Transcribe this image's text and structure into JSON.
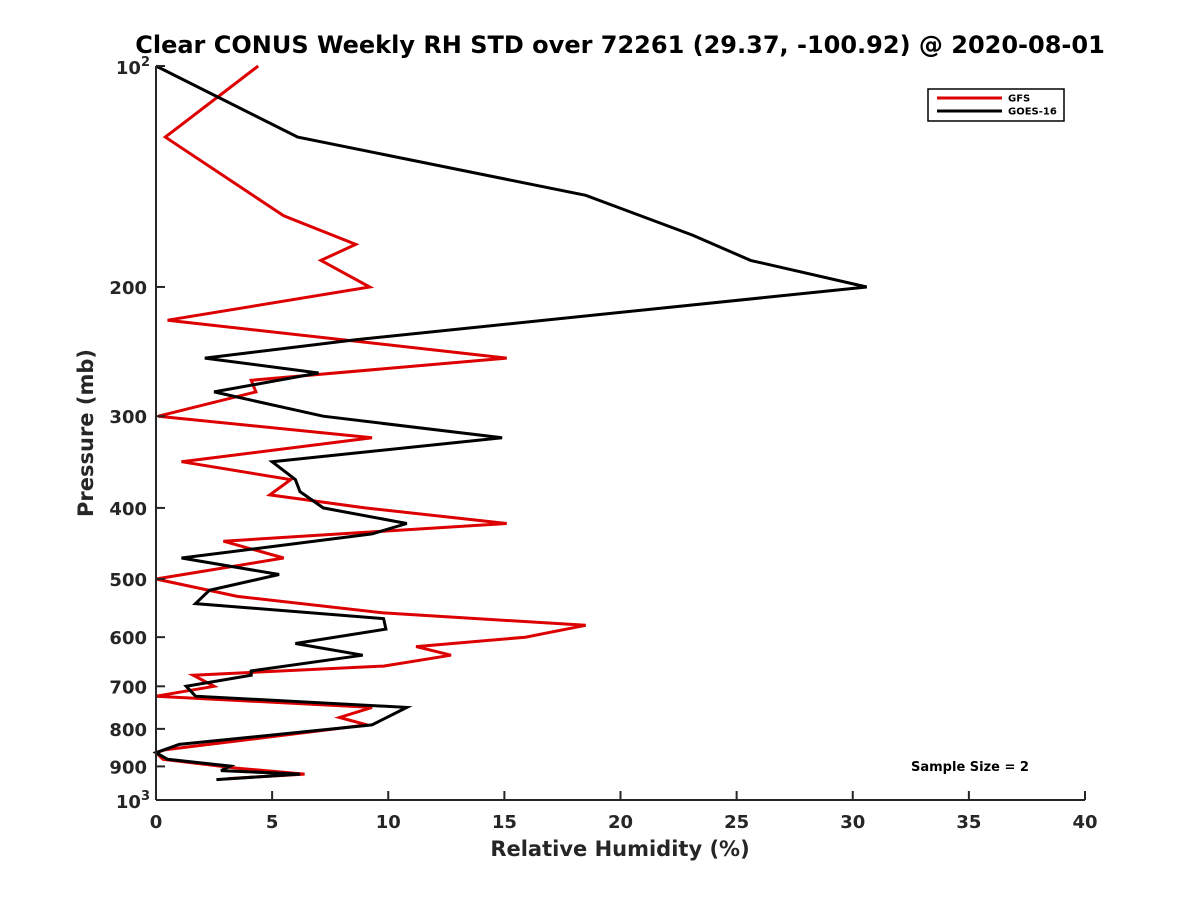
{
  "chart_data": {
    "type": "line",
    "title": "Clear CONUS Weekly RH STD over 72261 (29.37, -100.92) @ 2020-08-01",
    "xlabel": "Relative Humidity (%)",
    "ylabel": "Pressure (mb)",
    "xlim": [
      0,
      40
    ],
    "ylim": [
      100,
      1000
    ],
    "y_scale": "log",
    "y_reversed": true,
    "grid": false,
    "legend_position": "top-right",
    "x_ticks": [
      "0",
      "5",
      "10",
      "15",
      "20",
      "25",
      "30",
      "35",
      "40"
    ],
    "y_tick_values": [
      100,
      200,
      300,
      400,
      500,
      600,
      700,
      800,
      900,
      1000
    ],
    "y_ticks": [
      "10",
      "200",
      "300",
      "400",
      "500",
      "600",
      "700",
      "800",
      "900",
      "10"
    ],
    "y_tick_exponents": [
      "2",
      "",
      "",
      "",
      "",
      "",
      "",
      "",
      "",
      "3"
    ],
    "annotation": "Sample Size = 2",
    "series": [
      {
        "name": "GFS",
        "color": "#dd0000",
        "points": [
          [
            4.4,
            100
          ],
          [
            0.4,
            125
          ],
          [
            5.5,
            160
          ],
          [
            8.6,
            175
          ],
          [
            7.1,
            184
          ],
          [
            9.2,
            200
          ],
          [
            0.5,
            222
          ],
          [
            15.1,
            250
          ],
          [
            4.1,
            268
          ],
          [
            4.3,
            278
          ],
          [
            0.1,
            300
          ],
          [
            9.3,
            321
          ],
          [
            1.1,
            346
          ],
          [
            5.8,
            366
          ],
          [
            4.9,
            384
          ],
          [
            9.0,
            400
          ],
          [
            15.1,
            420
          ],
          [
            2.9,
            444
          ],
          [
            5.5,
            468
          ],
          [
            0.0,
            500
          ],
          [
            3.5,
            528
          ],
          [
            9.8,
            556
          ],
          [
            18.5,
            578
          ],
          [
            15.9,
            600
          ],
          [
            11.2,
            618
          ],
          [
            12.7,
            635
          ],
          [
            9.8,
            657
          ],
          [
            1.6,
            676
          ],
          [
            2.5,
            700
          ],
          [
            0.0,
            722
          ],
          [
            9.3,
            748
          ],
          [
            7.9,
            772
          ],
          [
            9.1,
            790
          ],
          [
            0.4,
            854
          ],
          [
            0.0,
            862
          ],
          [
            0.3,
            880
          ],
          [
            3.5,
            905
          ],
          [
            6.4,
            922
          ],
          [
            3.1,
            935
          ]
        ]
      },
      {
        "name": "GOES-16",
        "color": "#000000",
        "points": [
          [
            0.0,
            100
          ],
          [
            6.1,
            125
          ],
          [
            18.5,
            150
          ],
          [
            23.1,
            170
          ],
          [
            25.6,
            184
          ],
          [
            30.6,
            200
          ],
          [
            8.6,
            236
          ],
          [
            2.1,
            250
          ],
          [
            7.0,
            262
          ],
          [
            2.5,
            278
          ],
          [
            7.2,
            300
          ],
          [
            14.9,
            321
          ],
          [
            5.0,
            346
          ],
          [
            6.0,
            366
          ],
          [
            6.2,
            380
          ],
          [
            7.2,
            400
          ],
          [
            10.8,
            420
          ],
          [
            9.3,
            434
          ],
          [
            1.1,
            468
          ],
          [
            5.3,
            493
          ],
          [
            2.3,
            518
          ],
          [
            1.7,
            540
          ],
          [
            9.8,
            566
          ],
          [
            9.9,
            585
          ],
          [
            6.0,
            612
          ],
          [
            8.9,
            635
          ],
          [
            4.1,
            667
          ],
          [
            4.1,
            676
          ],
          [
            1.3,
            700
          ],
          [
            1.7,
            722
          ],
          [
            10.8,
            748
          ],
          [
            9.3,
            790
          ],
          [
            1.0,
            840
          ],
          [
            0.0,
            862
          ],
          [
            0.5,
            880
          ],
          [
            3.2,
            899
          ],
          [
            2.8,
            912
          ],
          [
            6.2,
            922
          ],
          [
            2.6,
            938
          ]
        ]
      }
    ]
  }
}
